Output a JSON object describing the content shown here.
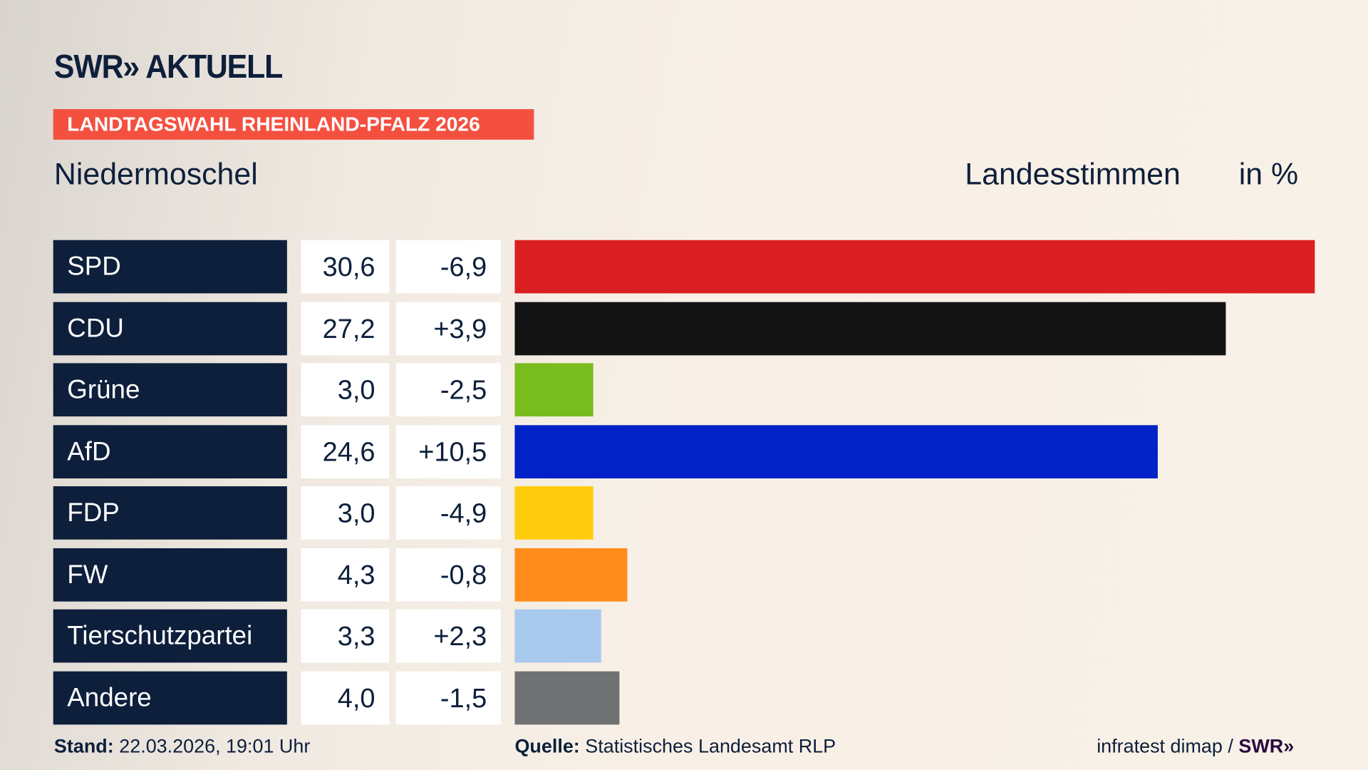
{
  "header": {
    "logo": "SWR» AKTUELL",
    "badge": "LANDTAGSWAHL RHEINLAND-PFALZ 2026",
    "place": "Niedermoschel",
    "vote_type": "Landesstimmen",
    "unit": "in %"
  },
  "chart_data": {
    "type": "bar",
    "orientation": "horizontal",
    "categories": [
      "SPD",
      "CDU",
      "Grüne",
      "AfD",
      "FDP",
      "FW",
      "Tierschutzpartei",
      "Andere"
    ],
    "values": [
      30.6,
      27.2,
      3.0,
      24.6,
      3.0,
      4.3,
      3.3,
      4.0
    ],
    "value_labels": [
      "30,6",
      "27,2",
      "3,0",
      "24,6",
      "3,0",
      "4,3",
      "3,3",
      "4,0"
    ],
    "diff_labels": [
      "-6,9",
      "+3,9",
      "-2,5",
      "+10,5",
      "-4,9",
      "-0,8",
      "+2,3",
      "-1,5"
    ],
    "colors": [
      "#d91f22",
      "#141414",
      "#79bc1e",
      "#0022c6",
      "#ffcc0d",
      "#ff8c1a",
      "#a9c8ee",
      "#707173"
    ]
  },
  "footer": {
    "stand_label": "Stand:",
    "stand_value": "22.03.2026, 19:01 Uhr",
    "source_label": "Quelle:",
    "source_value": "Statistisches Landesamt RLP",
    "credit": "infratest dimap /",
    "credit_logo": "SWR»"
  }
}
